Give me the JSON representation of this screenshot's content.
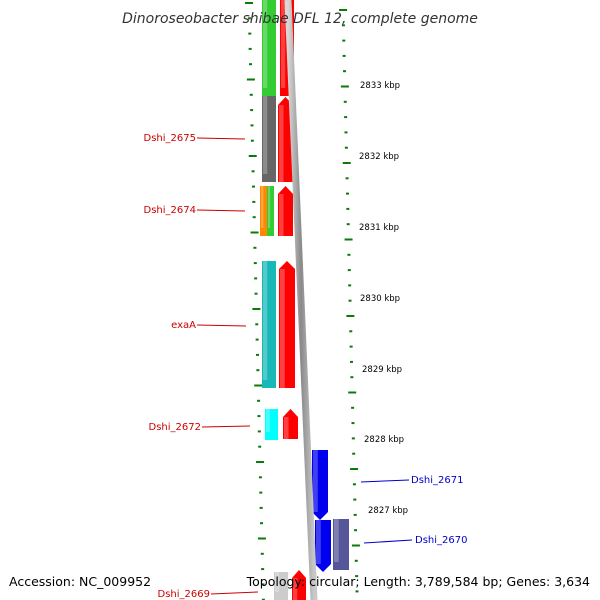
{
  "title": "Dinoroseobacter shibae DFL 12, complete genome",
  "footer": {
    "accession": "Accession: NC_009952",
    "topology": "Topology: circular; Length: 3,789,584 bp; Genes: 3,634"
  },
  "colors": {
    "forward_label": "#cc0000",
    "reverse_label": "#0000cc",
    "tick": "#0a7a0a",
    "backbone": "#9a9a9a",
    "forward_arrow": "#ff0000",
    "reverse_arrow": "#0000ee",
    "reverse_cog": "#555599",
    "green_cog": "#33cc33",
    "gray_cog": "#666666",
    "orange_cog": "#ff8800",
    "teal_cog": "#19b8b8",
    "cyan_cog": "#00ffff",
    "light_cog": "#cccccc"
  },
  "kbp_labels": [
    "2833 kbp",
    "2832 kbp",
    "2831 kbp",
    "2830 kbp",
    "2829 kbp",
    "2828 kbp",
    "2827 kbp"
  ],
  "gene_labels": [
    {
      "text": "Dshi_2675",
      "strand": "forward"
    },
    {
      "text": "Dshi_2674",
      "strand": "forward"
    },
    {
      "text": "exaA",
      "strand": "forward"
    },
    {
      "text": "Dshi_2672",
      "strand": "forward"
    },
    {
      "text": "Dshi_2671",
      "strand": "reverse"
    },
    {
      "text": "Dshi_2670",
      "strand": "reverse"
    },
    {
      "text": "Dshi_2669",
      "strand": "forward"
    }
  ]
}
